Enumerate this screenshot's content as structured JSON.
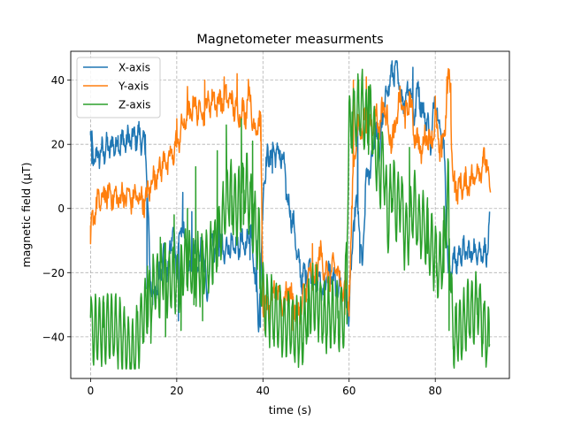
{
  "chart_data": {
    "type": "line",
    "title": "Magnetometer measurments",
    "xlabel": "time (s)",
    "ylabel": "magnetic field (μT)",
    "xlim": [
      -4.6,
      97.2
    ],
    "ylim": [
      -53,
      49
    ],
    "xticks": [
      0,
      20,
      40,
      60,
      80
    ],
    "yticks": [
      -40,
      -20,
      0,
      20,
      40
    ],
    "grid": true,
    "grid_style": "dashed",
    "legend_position": "upper left",
    "series": [
      {
        "name": "X-axis",
        "color": "#1f77b4",
        "x": [
          0,
          0.7,
          2,
          4,
          6,
          8,
          10,
          11,
          12,
          12.8,
          13.3,
          13.8,
          15,
          17,
          18,
          19,
          20,
          21,
          22,
          23,
          24,
          25,
          26,
          27,
          28,
          29,
          30,
          31,
          32,
          33,
          34,
          35,
          36,
          37,
          38,
          39,
          39.6,
          40.2,
          41,
          42,
          43,
          44,
          44.8,
          46,
          47,
          48,
          49,
          50,
          51,
          52,
          53,
          54,
          55,
          56,
          57,
          58,
          59,
          60,
          61,
          62,
          63,
          64,
          65,
          66,
          67,
          68,
          69,
          70,
          71,
          72,
          73,
          74,
          75,
          76,
          77,
          78,
          79,
          80,
          81,
          82,
          83,
          83.5,
          84,
          85,
          86,
          88,
          90,
          92,
          92.6
        ],
        "y": [
          22,
          15,
          17,
          19,
          20,
          21,
          22,
          23,
          21,
          18,
          1,
          -22,
          -28,
          -14,
          -20,
          -6,
          -18,
          -5,
          -10,
          -22,
          -13,
          -19,
          -10,
          -28,
          -8,
          -14,
          -9,
          -15,
          -11,
          -13,
          -12,
          -10,
          -13,
          -5,
          -17,
          -35,
          -18,
          10,
          15,
          17,
          18,
          16,
          14,
          0,
          -4,
          -15,
          -22,
          -20,
          -18,
          -24,
          -22,
          -26,
          -20,
          -21,
          -25,
          -24,
          -27,
          -33,
          -5,
          2,
          -20,
          10,
          12,
          25,
          18,
          30,
          38,
          42,
          44,
          35,
          33,
          40,
          28,
          38,
          30,
          28,
          20,
          36,
          25,
          20,
          -20,
          -22,
          -15,
          -17,
          -13,
          -14,
          -13,
          -14,
          -6
        ],
        "anchors": [
          [
            0,
            24
          ],
          [
            0.3,
            14
          ],
          [
            7,
            23
          ],
          [
            11,
            25
          ],
          [
            12.7,
            23
          ],
          [
            13.1,
            -25
          ],
          [
            14.4,
            -30
          ],
          [
            20.4,
            -35
          ],
          [
            21.4,
            5
          ],
          [
            23.5,
            -1
          ],
          [
            29.8,
            0
          ],
          [
            37,
            -16
          ],
          [
            38.5,
            -10
          ],
          [
            39.4,
            -37
          ],
          [
            41.7,
            18
          ],
          [
            42.2,
            11
          ],
          [
            44,
            18
          ],
          [
            62,
            29
          ],
          [
            62.5,
            -17
          ],
          [
            71.2,
            44
          ],
          [
            72.5,
            34
          ],
          [
            74.8,
            44
          ],
          [
            82.5,
            0
          ]
        ],
        "noise": 2.8,
        "wiggle": 2.5,
        "period": 1.2
      },
      {
        "name": "Y-axis",
        "color": "#ff7f0e",
        "x": [
          0,
          1,
          2,
          4,
          6,
          8,
          10,
          11,
          12,
          13,
          14,
          16,
          17,
          18,
          19,
          20,
          22,
          24,
          26,
          28,
          30,
          32,
          34,
          36,
          37,
          37.5,
          38.2,
          39,
          39.5,
          40,
          41,
          42,
          43,
          44,
          45,
          46,
          47,
          48,
          49,
          50,
          51,
          52,
          53,
          54,
          55,
          56,
          57,
          58,
          59,
          60,
          60.5,
          61,
          62,
          63,
          64,
          65,
          66,
          67,
          68,
          69,
          70,
          71,
          72,
          73,
          74,
          75,
          76,
          77,
          78,
          79,
          80,
          81,
          82,
          83,
          83.5,
          84,
          85,
          86,
          88,
          90,
          92,
          92.6
        ],
        "y": [
          -8,
          0,
          2,
          5,
          3,
          4,
          3,
          4,
          2,
          3,
          8,
          12,
          15,
          14,
          17,
          20,
          28,
          32,
          30,
          34,
          33,
          35,
          30,
          30,
          38,
          26,
          25,
          28,
          25,
          -28,
          -32,
          -30,
          -24,
          -28,
          -30,
          -25,
          -29,
          -33,
          -31,
          -24,
          -20,
          -24,
          -14,
          -17,
          -22,
          -20,
          -17,
          -25,
          -23,
          -30,
          -10,
          16,
          24,
          26,
          28,
          25,
          30,
          25,
          33,
          26,
          20,
          28,
          35,
          28,
          35,
          25,
          20,
          18,
          24,
          20,
          28,
          18,
          22,
          40,
          38,
          10,
          6,
          7,
          8,
          12,
          15,
          6
        ],
        "anchors": [
          [
            0,
            -11
          ],
          [
            1.6,
            6
          ],
          [
            12,
            4
          ],
          [
            14.5,
            9
          ],
          [
            20,
            28
          ],
          [
            22.5,
            38
          ],
          [
            26.5,
            40
          ],
          [
            30,
            37
          ],
          [
            31,
            41
          ],
          [
            34,
            42
          ],
          [
            38.5,
            24
          ],
          [
            39.5,
            21
          ],
          [
            40.4,
            -38
          ],
          [
            47,
            -38
          ],
          [
            48.6,
            -35
          ],
          [
            51.5,
            -11
          ],
          [
            53.5,
            -12
          ],
          [
            59,
            -33
          ],
          [
            60,
            -24
          ],
          [
            61,
            40
          ],
          [
            64,
            41
          ],
          [
            66,
            26
          ],
          [
            68,
            33
          ],
          [
            70,
            19
          ],
          [
            73,
            25
          ],
          [
            80,
            35
          ],
          [
            81.5,
            16
          ],
          [
            82.7,
            41
          ],
          [
            83.6,
            39
          ],
          [
            84.5,
            5
          ],
          [
            88,
            10
          ],
          [
            91,
            16
          ],
          [
            92.8,
            5
          ]
        ],
        "noise": 3.0,
        "wiggle": 2.5,
        "period": 1.4
      },
      {
        "name": "Z-axis",
        "color": "#2ca02c",
        "x": [
          0,
          0.6,
          2,
          4,
          6,
          7,
          8,
          9,
          9.5,
          10,
          11,
          12,
          13,
          14,
          15,
          16,
          17,
          18,
          19,
          20,
          22,
          24,
          26,
          28,
          30,
          32,
          34,
          36,
          38,
          39,
          40,
          41,
          42,
          43,
          44,
          45,
          46,
          47,
          48,
          49,
          50,
          51,
          52,
          53,
          54,
          56,
          58,
          59,
          60,
          61,
          62,
          63,
          64,
          65,
          66,
          67,
          68,
          69,
          70,
          71,
          72,
          73,
          74,
          75,
          76,
          77,
          78,
          79,
          80,
          81,
          82,
          83,
          84,
          86,
          87,
          88,
          89,
          90,
          91,
          92,
          92.6
        ],
        "y": [
          -35,
          -39,
          -38,
          -37,
          -38,
          -40,
          -41,
          -44,
          -46,
          -45,
          -40,
          -34,
          -31,
          -28,
          -22,
          -25,
          -18,
          -25,
          -20,
          -24,
          -15,
          -20,
          -18,
          -15,
          -8,
          5,
          0,
          8,
          -5,
          -10,
          -28,
          -31,
          -32,
          -33,
          -35,
          -36,
          -36,
          -37,
          -38,
          -40,
          -34,
          -30,
          -28,
          -30,
          -34,
          -33,
          -34,
          -35,
          25,
          28,
          30,
          32,
          25,
          30,
          18,
          10,
          15,
          -5,
          8,
          0,
          5,
          -10,
          -5,
          2,
          -5,
          -5,
          -8,
          -12,
          -15,
          -20,
          -10,
          5,
          -40,
          -38,
          -35,
          -32,
          -32,
          -29,
          -36,
          -40,
          -44
        ],
        "anchors": [
          [
            0,
            -34
          ],
          [
            0.5,
            -40
          ],
          [
            3,
            -37
          ],
          [
            9.2,
            -48
          ],
          [
            13.2,
            -18
          ],
          [
            14,
            -42
          ],
          [
            16.2,
            -9
          ],
          [
            17.4,
            -40
          ],
          [
            19.4,
            -2
          ],
          [
            21,
            -38
          ],
          [
            22.5,
            0
          ],
          [
            24,
            -30
          ],
          [
            24.4,
            13
          ],
          [
            26,
            -35
          ],
          [
            28.5,
            -7
          ],
          [
            29.4,
            18
          ],
          [
            30.2,
            -10
          ],
          [
            31.5,
            26
          ],
          [
            32.8,
            -5
          ],
          [
            35,
            28
          ],
          [
            35.5,
            -5
          ],
          [
            37.6,
            21
          ],
          [
            39.3,
            -25
          ],
          [
            49.2,
            -42
          ],
          [
            50.5,
            -40
          ],
          [
            53.2,
            -26
          ],
          [
            57.5,
            -32
          ],
          [
            59.5,
            -36
          ],
          [
            60.7,
            30
          ],
          [
            62.2,
            40
          ],
          [
            64.5,
            38
          ],
          [
            70,
            3
          ],
          [
            74,
            19
          ],
          [
            78.2,
            -14
          ],
          [
            80.3,
            -21
          ],
          [
            81.8,
            -10
          ],
          [
            82,
            -20
          ],
          [
            83.2,
            -38
          ],
          [
            84.2,
            -43
          ],
          [
            85.5,
            -38
          ],
          [
            89.8,
            -28
          ],
          [
            92.5,
            -43
          ]
        ],
        "noise": 2.2,
        "wiggle": 10,
        "period": 0.95
      }
    ]
  }
}
